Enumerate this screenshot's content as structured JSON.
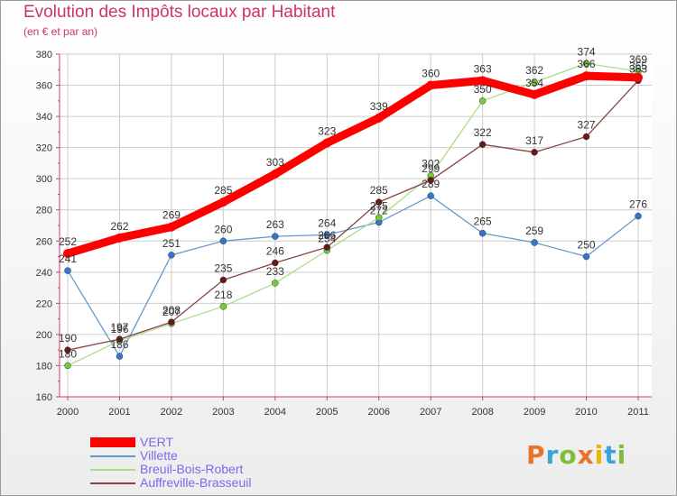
{
  "chart_data": {
    "type": "line",
    "title": "Evolution des Impôts locaux par Habitant",
    "subtitle": "(en € et par an)",
    "xlabel": "",
    "ylabel": "",
    "categories": [
      "2000",
      "2001",
      "2002",
      "2003",
      "2004",
      "2005",
      "2006",
      "2007",
      "2008",
      "2009",
      "2010",
      "2011"
    ],
    "ylim": [
      160,
      380
    ],
    "yticks": [
      160,
      180,
      200,
      220,
      240,
      260,
      280,
      300,
      320,
      340,
      360,
      380
    ],
    "grid": true,
    "legend_position": "bottom-left",
    "series": [
      {
        "name": "VERT",
        "color": "#ff0000",
        "emphasis": true,
        "values": [
          252,
          262,
          269,
          285,
          303,
          323,
          339,
          360,
          363,
          354,
          366,
          365
        ],
        "labels": [
          "252",
          "262",
          "269",
          "285",
          "303",
          "323",
          "339",
          "360",
          "363",
          "354",
          "366",
          "365"
        ]
      },
      {
        "name": "Villette",
        "color": "#6699cc",
        "marker": "#3377cc",
        "values": [
          241,
          186,
          251,
          260,
          263,
          264,
          272,
          289,
          265,
          259,
          250,
          276
        ],
        "labels": [
          "241",
          "186",
          "251",
          "260",
          "263",
          "264",
          "272",
          "289",
          "265",
          "259",
          "250",
          "276"
        ]
      },
      {
        "name": "Breuil-Bois-Robert",
        "color": "#aadd88",
        "marker": "#77cc33",
        "values": [
          180,
          196,
          207,
          218,
          233,
          254,
          275,
          302,
          350,
          362,
          374,
          369
        ],
        "labels": [
          "180",
          "196",
          "207",
          "218",
          "233",
          "254",
          "275",
          "302",
          "350",
          "362",
          "374",
          "369"
        ]
      },
      {
        "name": "Auffreville-Brasseuil",
        "color": "#884444",
        "marker": "#661a1a",
        "values": [
          190,
          197,
          208,
          235,
          246,
          256,
          285,
          299,
          322,
          317,
          327,
          363
        ],
        "labels": [
          "190",
          "197",
          "208",
          "235",
          "246",
          "256",
          "285",
          "299",
          "322",
          "317",
          "327",
          "363"
        ]
      }
    ]
  },
  "brand": {
    "logo_text": "Proxiti",
    "letter_colors": [
      "#e8732a",
      "#3aa3d8",
      "#7fbe3a",
      "#e8732a",
      "#f0b400",
      "#3aa3d8",
      "#7fbe3a"
    ]
  }
}
